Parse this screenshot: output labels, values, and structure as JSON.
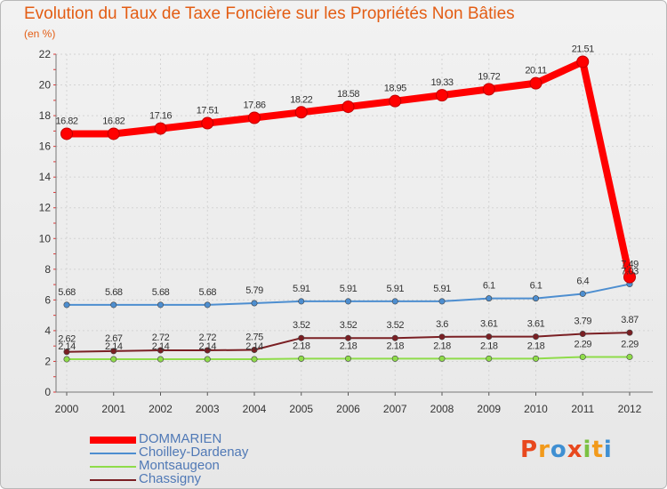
{
  "chart_data": {
    "type": "line",
    "title": "Evolution du Taux de Taxe Foncière sur les Propriétés Non Bâties",
    "subtitle": "(en %)",
    "categories": [
      "2000",
      "2001",
      "2002",
      "2003",
      "2004",
      "2005",
      "2006",
      "2007",
      "2008",
      "2009",
      "2010",
      "2011",
      "2012"
    ],
    "yticks": [
      "0",
      "2",
      "4",
      "6",
      "8",
      "10",
      "12",
      "14",
      "16",
      "18",
      "20",
      "22"
    ],
    "ylim": [
      0,
      22
    ],
    "grid": true,
    "legend_position": "bottom-left",
    "series": [
      {
        "name": "DOMMARIEN",
        "color": "#ff0000",
        "labels": true,
        "values": [
          16.82,
          16.82,
          17.16,
          17.51,
          17.86,
          18.22,
          18.58,
          18.95,
          19.33,
          19.72,
          20.11,
          21.51,
          7.49
        ],
        "value_labels": [
          "16.82",
          "16.82",
          "17.16",
          "17.51",
          "17.86",
          "18.22",
          "18.58",
          "18.95",
          "19.33",
          "19.72",
          "20.11",
          "21.51",
          "7.49"
        ]
      },
      {
        "name": "Choilley-Dardenay",
        "color": "#4d8ed0",
        "labels": true,
        "values": [
          5.68,
          5.68,
          5.68,
          5.68,
          5.79,
          5.91,
          5.91,
          5.91,
          5.91,
          6.1,
          6.1,
          6.4,
          7.03
        ],
        "value_labels": [
          "5.68",
          "5.68",
          "5.68",
          "5.68",
          "5.79",
          "5.91",
          "5.91",
          "5.91",
          "5.91",
          "6.1",
          "6.1",
          "6.4",
          "7.03"
        ]
      },
      {
        "name": "Montsaugeon",
        "color": "#8fdc4a",
        "labels": true,
        "values": [
          2.14,
          2.14,
          2.14,
          2.14,
          2.14,
          2.18,
          2.18,
          2.18,
          2.18,
          2.18,
          2.18,
          2.29,
          2.29
        ],
        "value_labels": [
          "2.14",
          "2.14",
          "2.14",
          "2.14",
          "2.14",
          "2.18",
          "2.18",
          "2.18",
          "2.18",
          "2.18",
          "2.18",
          "2.29",
          "2.29"
        ]
      },
      {
        "name": "Chassigny",
        "color": "#7a1f23",
        "labels": true,
        "values": [
          2.62,
          2.67,
          2.72,
          2.72,
          2.75,
          3.52,
          3.52,
          3.52,
          3.6,
          3.61,
          3.61,
          3.79,
          3.87
        ],
        "value_labels": [
          "2.62",
          "2.67",
          "2.72",
          "2.72",
          "2.75",
          "3.52",
          "3.52",
          "3.52",
          "3.6",
          "3.61",
          "3.61",
          "3.79",
          "3.87"
        ]
      }
    ]
  },
  "legend": {
    "items": [
      {
        "label": "DOMMARIEN",
        "color": "#ff0000"
      },
      {
        "label": "Choilley-Dardenay",
        "color": "#4d8ed0"
      },
      {
        "label": "Montsaugeon",
        "color": "#8fdc4a"
      },
      {
        "label": "Chassigny",
        "color": "#7a1f23"
      }
    ]
  },
  "logo": {
    "letters": [
      "P",
      "r",
      "o",
      "x",
      "i",
      "t",
      "i"
    ],
    "colors": [
      "#e8481e",
      "#f29a1b",
      "#3f8fd2",
      "#e8481e",
      "#7bc143",
      "#f29a1b",
      "#3f8fd2"
    ]
  }
}
